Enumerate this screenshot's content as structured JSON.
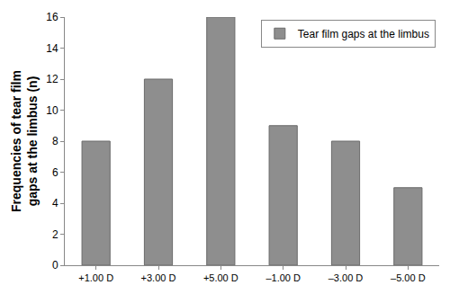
{
  "chart_data": {
    "type": "bar",
    "y_label": "Frequencies of tear film\ngaps at the limbus (n)",
    "categories": [
      "+1.00 D",
      "+3.00 D",
      "+5.00 D",
      "–1.00 D",
      "–3.00 D",
      "–5.00 D"
    ],
    "series": [
      {
        "name": "Tear film gaps at the limbus",
        "color": "#8e8e8e",
        "values": [
          8,
          12,
          16,
          9,
          8,
          5
        ]
      }
    ],
    "ylim": [
      0,
      16
    ],
    "yticks": [
      0,
      2,
      4,
      6,
      8,
      10,
      12,
      14,
      16
    ],
    "grid": false,
    "legend": "upper right"
  }
}
